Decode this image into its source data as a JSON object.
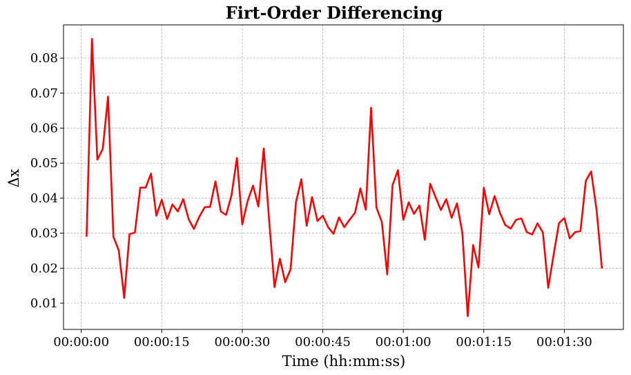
{
  "chart_data": {
    "type": "line",
    "title": "Firt-Order Differencing",
    "xlabel": "Time (hh:mm:ss)",
    "ylabel": "Δx",
    "x_unit": "seconds",
    "xlim": [
      -3.3,
      101
    ],
    "ylim": [
      0.0025,
      0.0895
    ],
    "x_ticks": [
      {
        "value": 0,
        "label": "00:00:00"
      },
      {
        "value": 15,
        "label": "00:00:15"
      },
      {
        "value": 30,
        "label": "00:00:30"
      },
      {
        "value": 45,
        "label": "00:00:45"
      },
      {
        "value": 60,
        "label": "00:01:00"
      },
      {
        "value": 75,
        "label": "00:01:15"
      },
      {
        "value": 90,
        "label": "00:01:30"
      }
    ],
    "y_ticks": [
      {
        "value": 0.01,
        "label": "0.01"
      },
      {
        "value": 0.02,
        "label": "0.02"
      },
      {
        "value": 0.03,
        "label": "0.03"
      },
      {
        "value": 0.04,
        "label": "0.04"
      },
      {
        "value": 0.05,
        "label": "0.05"
      },
      {
        "value": 0.06,
        "label": "0.06"
      },
      {
        "value": 0.07,
        "label": "0.07"
      },
      {
        "value": 0.08,
        "label": "0.08"
      }
    ],
    "grid": true,
    "series": [
      {
        "color": "#ff0000",
        "x": [
          1,
          2,
          3,
          4,
          5,
          6,
          7,
          8,
          9,
          10,
          11,
          12,
          13,
          14,
          15,
          16,
          17,
          18,
          19,
          20,
          21,
          22,
          23,
          24,
          25,
          26,
          27,
          28,
          29,
          30,
          31,
          32,
          33,
          34,
          35,
          36,
          37,
          38,
          39,
          40,
          41,
          42,
          43,
          44,
          45,
          46,
          47,
          48,
          49,
          50,
          51,
          52,
          53,
          54,
          55,
          56,
          57,
          58,
          59,
          60,
          61,
          62,
          63,
          64,
          65,
          66,
          67,
          68,
          69,
          70,
          71,
          72,
          73,
          74,
          75,
          76,
          77,
          78,
          79,
          80,
          81,
          82,
          83,
          84,
          85,
          86,
          87,
          88,
          89,
          90,
          91,
          92,
          93,
          94,
          95,
          96,
          97
        ],
        "y": [
          0.029,
          0.0855,
          0.051,
          0.054,
          0.069,
          0.029,
          0.025,
          0.0115,
          0.0297,
          0.0302,
          0.043,
          0.043,
          0.047,
          0.035,
          0.0395,
          0.034,
          0.0382,
          0.0362,
          0.0397,
          0.034,
          0.0312,
          0.0347,
          0.0374,
          0.0375,
          0.0448,
          0.0362,
          0.0352,
          0.0409,
          0.0515,
          0.0325,
          0.0392,
          0.0436,
          0.0376,
          0.0542,
          0.0338,
          0.0146,
          0.0227,
          0.016,
          0.0197,
          0.0388,
          0.0454,
          0.0321,
          0.0403,
          0.0335,
          0.035,
          0.0317,
          0.0298,
          0.0345,
          0.0317,
          0.0338,
          0.0358,
          0.0428,
          0.0367,
          0.0658,
          0.0373,
          0.0332,
          0.0182,
          0.0437,
          0.048,
          0.0338,
          0.0388,
          0.0355,
          0.0379,
          0.0281,
          0.0441,
          0.0403,
          0.0366,
          0.0397,
          0.0344,
          0.0385,
          0.0301,
          0.0063,
          0.0266,
          0.0202,
          0.043,
          0.0354,
          0.0406,
          0.0358,
          0.0323,
          0.0313,
          0.0338,
          0.0342,
          0.0303,
          0.0296,
          0.0328,
          0.0302,
          0.0144,
          0.0238,
          0.0329,
          0.0343,
          0.0285,
          0.0303,
          0.0306,
          0.045,
          0.0476,
          0.0367,
          0.0199
        ]
      }
    ]
  }
}
